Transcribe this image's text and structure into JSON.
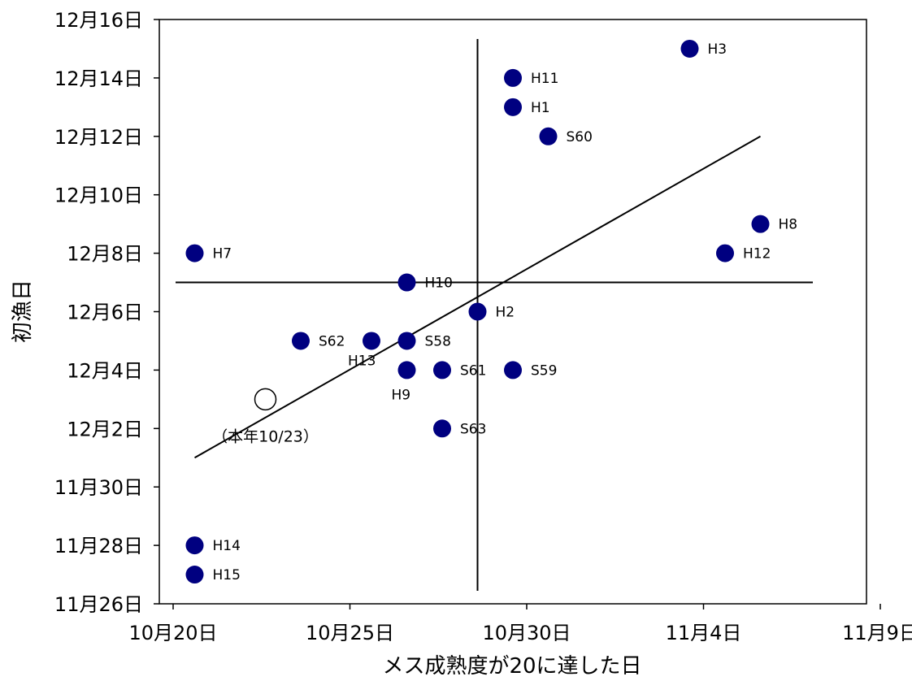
{
  "chart_data": {
    "type": "scatter",
    "xlabel": "メス成熟度が20に達した日",
    "ylabel": "初漁日",
    "x_ticks": [
      "10月20日",
      "10月25日",
      "10月30日",
      "11月4日",
      "11月9日"
    ],
    "y_ticks": [
      "11月26日",
      "11月28日",
      "11月30日",
      "12月2日",
      "12月4日",
      "12月6日",
      "12月8日",
      "12月10日",
      "12月12日",
      "12月14日",
      "12月16日"
    ],
    "xlim": [
      "10-20",
      "11-09"
    ],
    "ylim": [
      "11-26",
      "12-16"
    ],
    "grid": false,
    "legend": "none",
    "marker_color": "#000080",
    "series": [
      {
        "points": [
          {
            "label": "H3",
            "x": "11-04",
            "y": "12-15"
          },
          {
            "label": "H11",
            "x": "10-30",
            "y": "12-14"
          },
          {
            "label": "H1",
            "x": "10-30",
            "y": "12-13"
          },
          {
            "label": "S60",
            "x": "10-31",
            "y": "12-12"
          },
          {
            "label": "H8",
            "x": "11-06",
            "y": "12-09"
          },
          {
            "label": "H12",
            "x": "11-05",
            "y": "12-08"
          },
          {
            "label": "H7",
            "x": "10-21",
            "y": "12-08"
          },
          {
            "label": "H10",
            "x": "10-27",
            "y": "12-07"
          },
          {
            "label": "H2",
            "x": "10-29",
            "y": "12-06"
          },
          {
            "label": "S62",
            "x": "10-24",
            "y": "12-05"
          },
          {
            "label": "H13",
            "x": "10-26",
            "y": "12-05"
          },
          {
            "label": "S58",
            "x": "10-27",
            "y": "12-05"
          },
          {
            "label": "H9",
            "x": "10-27",
            "y": "12-04"
          },
          {
            "label": "S61",
            "x": "10-28",
            "y": "12-04"
          },
          {
            "label": "S59",
            "x": "10-30",
            "y": "12-04"
          },
          {
            "label": "S63",
            "x": "10-28",
            "y": "12-02"
          },
          {
            "label": "H14",
            "x": "10-21",
            "y": "11-28"
          },
          {
            "label": "H15",
            "x": "10-21",
            "y": "11-27"
          }
        ]
      }
    ],
    "current_year": {
      "label": "（本年10/23）",
      "x": "10-23",
      "y": "12-03"
    },
    "regression_line": {
      "from": {
        "x": "10-21",
        "y": "12-01"
      },
      "to": {
        "x": "11-06",
        "y": "12-12"
      }
    },
    "mean_lines": {
      "x": "10-29",
      "y": "12-07"
    }
  }
}
